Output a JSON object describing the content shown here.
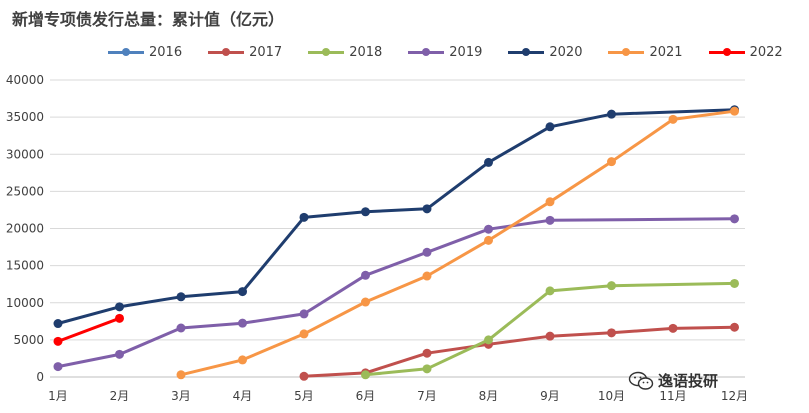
{
  "chart_data": {
    "type": "line",
    "title": "新增专项债发行总量：累计值（亿元）",
    "xlabel": "",
    "ylabel": "",
    "categories": [
      "1月",
      "2月",
      "3月",
      "4月",
      "5月",
      "6月",
      "7月",
      "8月",
      "9月",
      "10月",
      "11月",
      "12月"
    ],
    "ylim": [
      0,
      40000
    ],
    "yticks": [
      0,
      5000,
      10000,
      15000,
      20000,
      25000,
      30000,
      35000,
      40000
    ],
    "grid": "horizontal",
    "legend_position": "top",
    "series": [
      {
        "name": "2016",
        "color": "#4f81bd",
        "values": [
          null,
          null,
          null,
          null,
          null,
          null,
          null,
          null,
          null,
          null,
          null,
          null
        ]
      },
      {
        "name": "2017",
        "color": "#c0504d",
        "values": [
          null,
          null,
          null,
          null,
          100,
          550,
          3200,
          4400,
          5500,
          5950,
          6550,
          6700
        ]
      },
      {
        "name": "2018",
        "color": "#9bbb59",
        "values": [
          null,
          null,
          null,
          null,
          null,
          300,
          1100,
          5000,
          11600,
          12300,
          null,
          12600
        ]
      },
      {
        "name": "2019",
        "color": "#7f5fa9",
        "values": [
          1400,
          3050,
          6600,
          7250,
          8500,
          13700,
          16800,
          19900,
          21100,
          null,
          null,
          21300
        ]
      },
      {
        "name": "2020",
        "color": "#1f3d6e",
        "values": [
          7200,
          9450,
          10800,
          11500,
          21500,
          22250,
          22650,
          28900,
          33700,
          35400,
          null,
          36000
        ]
      },
      {
        "name": "2021",
        "color": "#f79646",
        "values": [
          null,
          null,
          300,
          2300,
          5800,
          10100,
          13600,
          18400,
          23600,
          29000,
          34700,
          35800
        ]
      },
      {
        "name": "2022",
        "color": "#ff0000",
        "values": [
          4800,
          7900,
          null,
          null,
          null,
          null,
          null,
          null,
          null,
          null,
          null,
          null
        ]
      }
    ]
  },
  "watermark": {
    "text": "逸语投研",
    "icon": "wechat-icon"
  }
}
